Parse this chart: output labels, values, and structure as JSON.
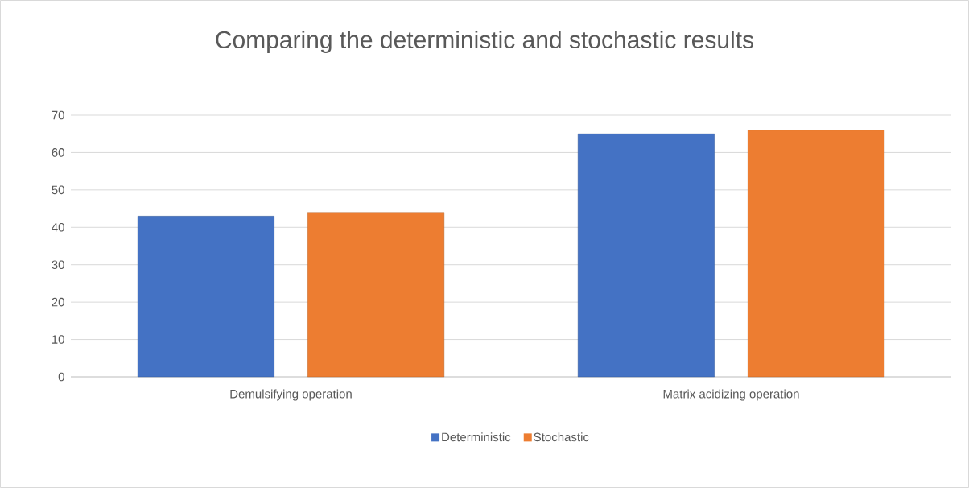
{
  "chart_data": {
    "type": "bar",
    "title": "Comparing the deterministic and stochastic results",
    "categories": [
      "Demulsifying operation",
      "Matrix acidizing operation"
    ],
    "series": [
      {
        "name": "Deterministic",
        "color": "#4472c4",
        "values": [
          43,
          65
        ]
      },
      {
        "name": "Stochastic",
        "color": "#ed7d31",
        "values": [
          44,
          66
        ]
      }
    ],
    "ylim": [
      0,
      70
    ],
    "yticks": [
      0,
      10,
      20,
      30,
      40,
      50,
      60,
      70
    ],
    "grid": "y",
    "legend": "bottom"
  }
}
